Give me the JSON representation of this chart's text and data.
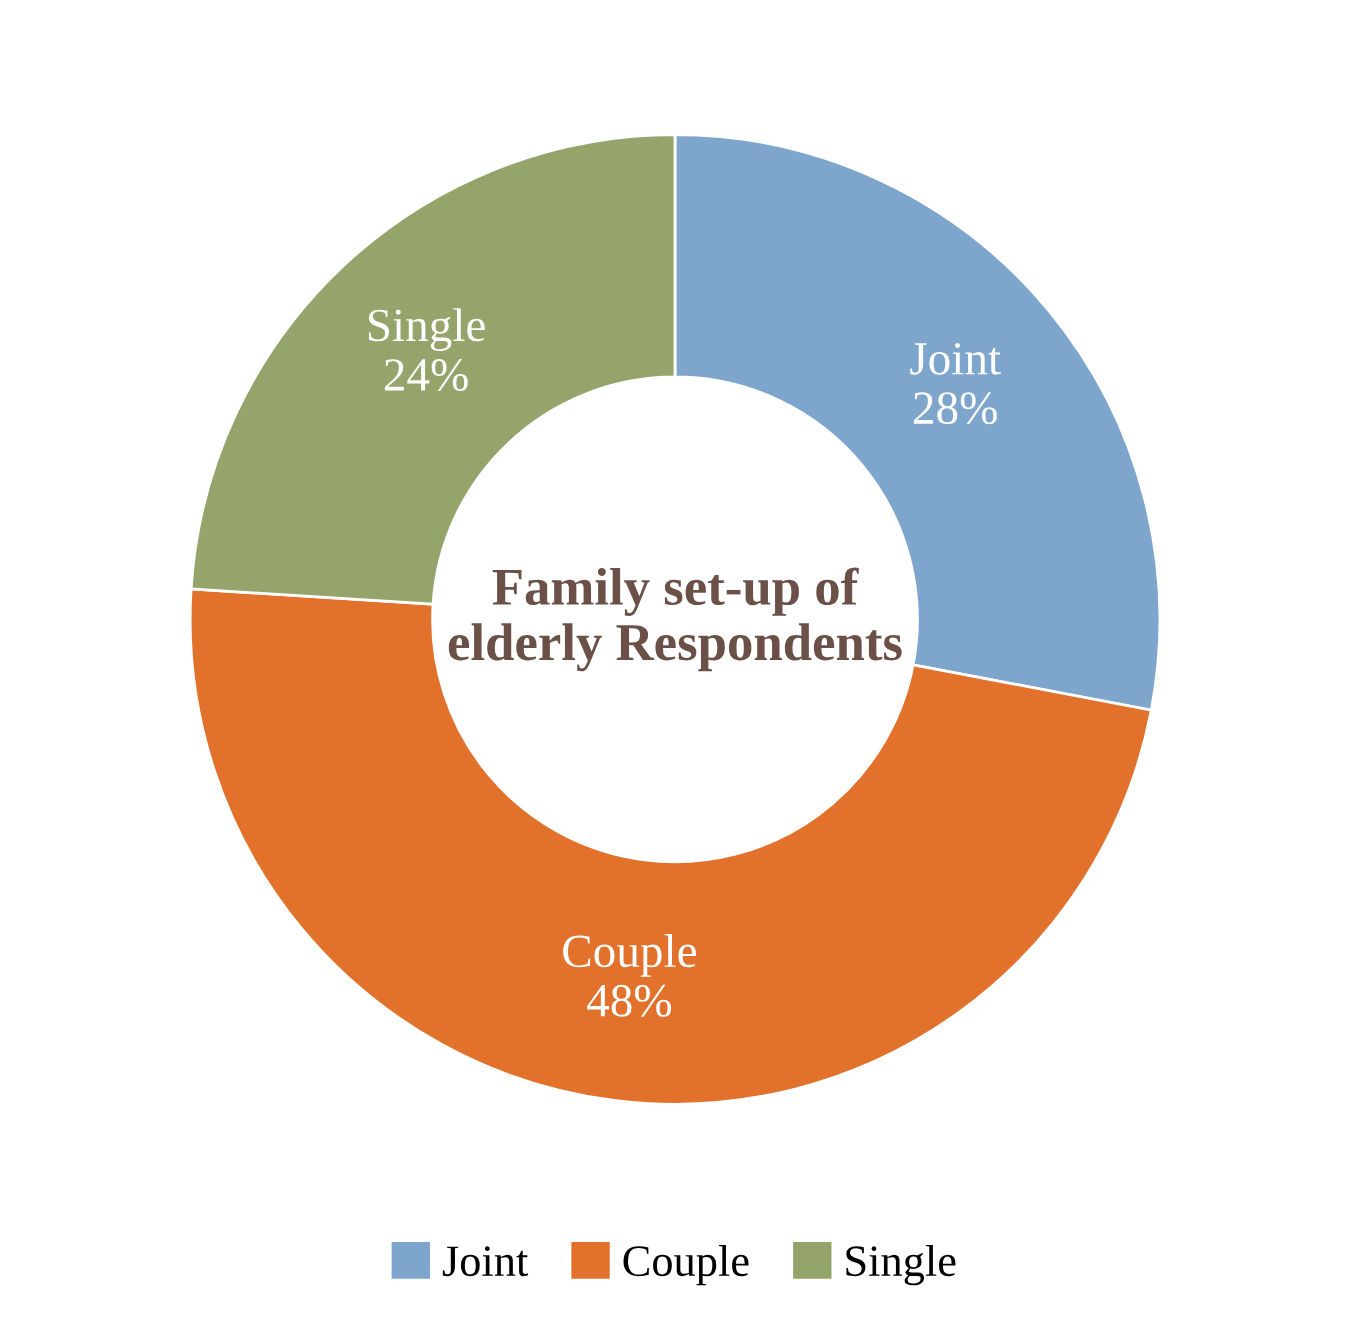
{
  "chart_data": {
    "type": "donut",
    "title": "Family set-up of elderly Respondents",
    "categories": [
      "Joint",
      "Couple",
      "Single"
    ],
    "values": [
      28,
      48,
      24
    ],
    "colors": [
      "#7ea6cc",
      "#e2712c",
      "#95a46a"
    ],
    "value_labels": [
      "28%",
      "48%",
      "24%"
    ],
    "legend": "bottom"
  }
}
